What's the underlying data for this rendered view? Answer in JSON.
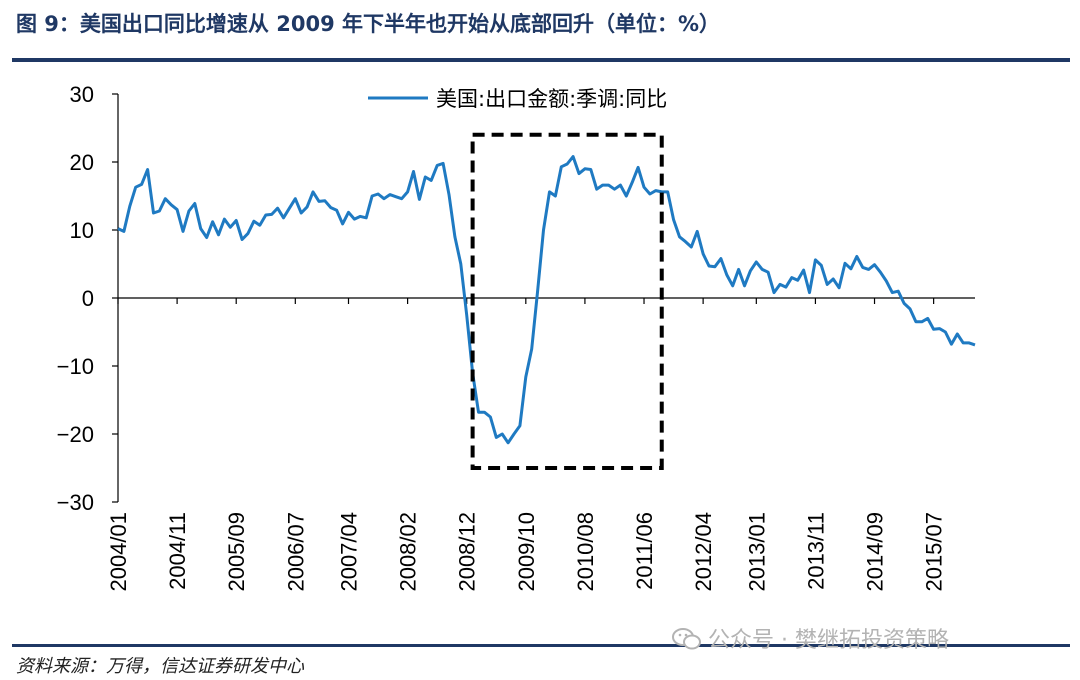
{
  "figure": {
    "title": "图 9：美国出口同比增速从 2009 年下半年也开始从底部回升（单位：%）",
    "source": "资料来源：万得，信达证券研发中心",
    "watermark": "公众号 · 樊继拓投资策略"
  },
  "colors": {
    "series": "#1f7ac2",
    "rule": "#1f3864",
    "highlight_box": "#000000"
  },
  "icons": {
    "watermark": "wechat-icon"
  },
  "chart_data": {
    "type": "line",
    "title": "",
    "xlabel": "",
    "ylabel": "",
    "ylim": [
      -30,
      30
    ],
    "yticks": [
      30,
      20,
      10,
      0,
      -10,
      -20,
      -30
    ],
    "ytick_labels": [
      "30",
      "20",
      "10",
      "0",
      "−10",
      "−20",
      "−30"
    ],
    "x_start": "2004/01",
    "x_end": "2016/02",
    "xtick_labels": [
      "2004/01",
      "2004/11",
      "2005/09",
      "2006/07",
      "2007/04",
      "2008/02",
      "2008/12",
      "2009/10",
      "2010/08",
      "2011/06",
      "2012/04",
      "2013/01",
      "2013/11",
      "2014/09",
      "2015/07"
    ],
    "grid": false,
    "legend": {
      "position": "top-center",
      "entries": [
        "美国:出口金额:季调:同比"
      ]
    },
    "highlight_box": {
      "x_from": "2009/01",
      "x_to": "2011/09",
      "y_from": -25,
      "y_to": 24
    },
    "series": [
      {
        "name": "美国:出口金额:季调:同比",
        "values": [
          10.2,
          9.8,
          13.5,
          16.3,
          16.7,
          18.9,
          12.5,
          12.8,
          14.6,
          13.7,
          13.0,
          9.8,
          12.8,
          13.9,
          10.2,
          8.9,
          11.2,
          9.3,
          11.6,
          10.4,
          11.4,
          8.6,
          9.5,
          11.3,
          10.7,
          12.2,
          12.3,
          13.2,
          11.8,
          13.2,
          14.6,
          12.5,
          13.4,
          15.6,
          14.2,
          14.3,
          13.3,
          12.9,
          10.9,
          12.6,
          11.6,
          12.0,
          11.8,
          15.0,
          15.3,
          14.6,
          15.2,
          14.9,
          14.6,
          15.6,
          18.6,
          14.5,
          17.8,
          17.3,
          19.5,
          19.8,
          15.2,
          9.0,
          5.0,
          -2.5,
          -11.0,
          -16.8,
          -16.8,
          -17.5,
          -20.5,
          -20.0,
          -21.3,
          -20.0,
          -18.8,
          -11.6,
          -7.5,
          1.0,
          10.0,
          15.6,
          15.0,
          19.3,
          19.7,
          20.8,
          18.3,
          19.0,
          18.9,
          16.0,
          16.6,
          16.6,
          16.0,
          16.6,
          15.0,
          17.0,
          19.2,
          16.3,
          15.3,
          15.8,
          15.6,
          15.6,
          11.5,
          9.0,
          8.3,
          7.5,
          9.8,
          6.5,
          4.7,
          4.6,
          5.8,
          3.4,
          1.8,
          4.2,
          1.8,
          4.0,
          5.3,
          4.2,
          3.8,
          0.8,
          2.0,
          1.6,
          3.0,
          2.6,
          4.1,
          0.8,
          5.6,
          4.8,
          2.0,
          2.8,
          1.5,
          5.1,
          4.3,
          6.1,
          4.5,
          4.2,
          4.9,
          3.8,
          2.5,
          0.8,
          1.0,
          -0.8,
          -1.6,
          -3.5,
          -3.5,
          -3.0,
          -4.6,
          -4.5,
          -5.0,
          -6.8,
          -5.3,
          -6.6,
          -6.6,
          -6.9
        ]
      }
    ]
  }
}
